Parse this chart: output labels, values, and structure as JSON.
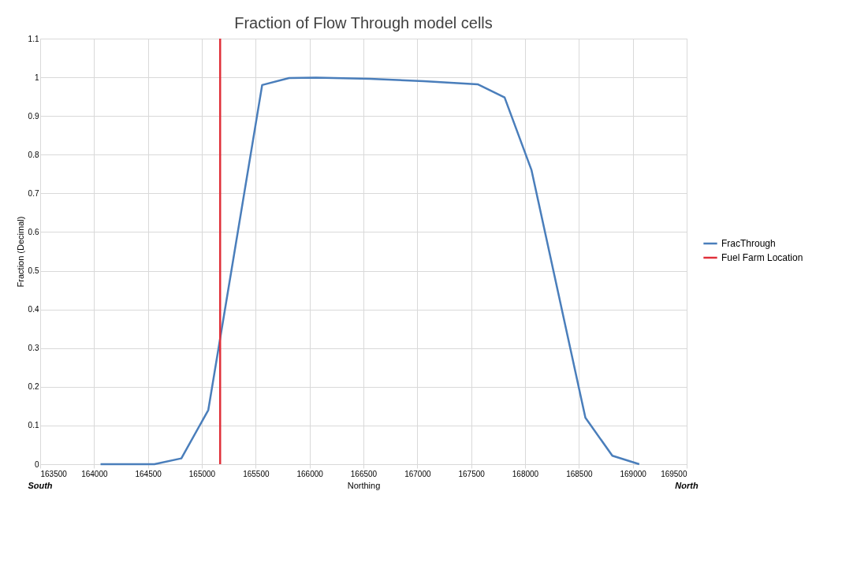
{
  "chart_data": {
    "type": "line",
    "title": "Fraction of Flow Through model cells",
    "xlabel": "Northing",
    "ylabel": "Fraction (Decimal)",
    "x": [
      164060,
      164560,
      164810,
      165060,
      165560,
      165810,
      166060,
      166560,
      167060,
      167560,
      167810,
      168060,
      168560,
      168810,
      169060
    ],
    "series": [
      {
        "name": "FracThrough",
        "color": "#4a7ebb",
        "values": [
          0,
          0,
          0.015,
          0.14,
          0.98,
          0.998,
          0.999,
          0.996,
          0.99,
          0.982,
          0.948,
          0.76,
          0.12,
          0.022,
          0
        ]
      },
      {
        "name": "Fuel Farm Location",
        "type": "line",
        "color": "#e0303a",
        "x": [
          165170,
          165170
        ],
        "values": [
          0,
          1.1
        ]
      }
    ],
    "xlim": [
      163500,
      169500
    ],
    "xticks": [
      163500,
      164000,
      164500,
      165000,
      165500,
      166000,
      166500,
      167000,
      167500,
      168000,
      168500,
      169000,
      169500
    ],
    "ylim": [
      0,
      1.1
    ],
    "yticks": [
      0,
      0.1,
      0.2,
      0.3,
      0.4,
      0.5,
      0.6,
      0.7,
      0.8,
      0.9,
      1,
      1.1
    ],
    "grid": true,
    "legend": "right",
    "marker": "none",
    "line_style": "solid",
    "annotations": [
      "South",
      "North"
    ]
  }
}
